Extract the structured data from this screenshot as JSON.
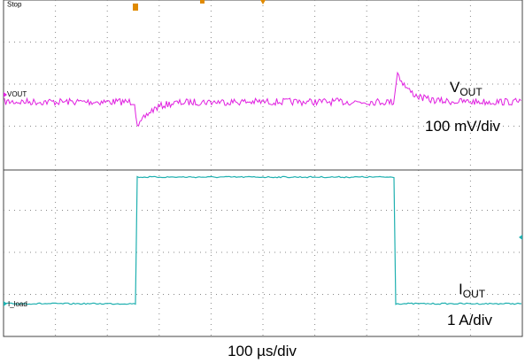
{
  "status": "Stop",
  "channels": [
    {
      "marker": "VOUT",
      "name": {
        "main": "V",
        "sub": "OUT"
      },
      "scale": "100 mV/div"
    },
    {
      "marker": "I_load",
      "name": {
        "main": "I",
        "sub": "OUT"
      },
      "scale": "1 A/div"
    }
  ],
  "timebase": "100 µs/div"
}
